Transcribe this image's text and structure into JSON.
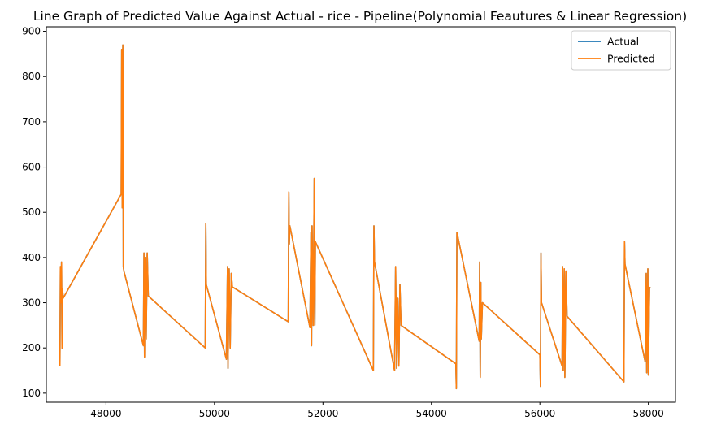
{
  "chart_data": {
    "type": "line",
    "title": "Line Graph of Predicted Value Against Actual - rice  - Pipeline(Polynomial Feautures & Linear Regression)",
    "xlabel": "",
    "ylabel": "",
    "xlim": [
      46900,
      58500
    ],
    "ylim": [
      80,
      910
    ],
    "xticks": [
      48000,
      50000,
      52000,
      54000,
      56000,
      58000
    ],
    "yticks": [
      100,
      200,
      300,
      400,
      500,
      600,
      700,
      800,
      900
    ],
    "grid": false,
    "legend_position": "top-right",
    "series": [
      {
        "name": "Actual",
        "color": "#1f77b4",
        "points": [
          [
            47150,
            160
          ],
          [
            47160,
            380
          ],
          [
            47170,
            300
          ],
          [
            47180,
            390
          ],
          [
            47190,
            200
          ],
          [
            47200,
            330
          ],
          [
            47210,
            310
          ],
          [
            48280,
            540
          ],
          [
            48290,
            860
          ],
          [
            48300,
            510
          ],
          [
            48310,
            870
          ],
          [
            48320,
            380
          ],
          [
            48330,
            370
          ],
          [
            48690,
            205
          ],
          [
            48700,
            410
          ],
          [
            48710,
            180
          ],
          [
            48720,
            400
          ],
          [
            48740,
            220
          ],
          [
            48760,
            410
          ],
          [
            48780,
            315
          ],
          [
            49830,
            200
          ],
          [
            49840,
            475
          ],
          [
            49850,
            340
          ],
          [
            50220,
            175
          ],
          [
            50240,
            380
          ],
          [
            50250,
            155
          ],
          [
            50270,
            375
          ],
          [
            50290,
            200
          ],
          [
            50310,
            365
          ],
          [
            50330,
            335
          ],
          [
            51360,
            258
          ],
          [
            51370,
            545
          ],
          [
            51380,
            430
          ],
          [
            51390,
            470
          ],
          [
            51760,
            245
          ],
          [
            51780,
            455
          ],
          [
            51790,
            205
          ],
          [
            51800,
            470
          ],
          [
            51820,
            250
          ],
          [
            51840,
            575
          ],
          [
            51850,
            250
          ],
          [
            51860,
            435
          ],
          [
            52930,
            150
          ],
          [
            52940,
            470
          ],
          [
            52950,
            390
          ],
          [
            53320,
            150
          ],
          [
            53340,
            380
          ],
          [
            53360,
            155
          ],
          [
            53380,
            310
          ],
          [
            53400,
            160
          ],
          [
            53420,
            340
          ],
          [
            53440,
            250
          ],
          [
            54450,
            165
          ],
          [
            54460,
            110
          ],
          [
            54470,
            455
          ],
          [
            54480,
            450
          ],
          [
            54880,
            215
          ],
          [
            54890,
            390
          ],
          [
            54900,
            135
          ],
          [
            54910,
            345
          ],
          [
            54920,
            220
          ],
          [
            54940,
            300
          ],
          [
            56000,
            185
          ],
          [
            56010,
            115
          ],
          [
            56020,
            410
          ],
          [
            56030,
            300
          ],
          [
            56410,
            160
          ],
          [
            56420,
            380
          ],
          [
            56430,
            150
          ],
          [
            56450,
            375
          ],
          [
            56460,
            135
          ],
          [
            56480,
            370
          ],
          [
            56500,
            270
          ],
          [
            57550,
            125
          ],
          [
            57560,
            435
          ],
          [
            57570,
            385
          ],
          [
            57940,
            170
          ],
          [
            57960,
            365
          ],
          [
            57970,
            145
          ],
          [
            57990,
            375
          ],
          [
            58000,
            140
          ],
          [
            58020,
            330
          ],
          [
            58030,
            335
          ]
        ]
      },
      {
        "name": "Predicted",
        "color": "#ff7f0e",
        "points": [
          [
            47150,
            160
          ],
          [
            47160,
            380
          ],
          [
            47170,
            300
          ],
          [
            47180,
            390
          ],
          [
            47190,
            200
          ],
          [
            47200,
            330
          ],
          [
            47210,
            310
          ],
          [
            48280,
            540
          ],
          [
            48290,
            860
          ],
          [
            48300,
            510
          ],
          [
            48310,
            870
          ],
          [
            48320,
            380
          ],
          [
            48330,
            370
          ],
          [
            48690,
            205
          ],
          [
            48700,
            410
          ],
          [
            48710,
            180
          ],
          [
            48720,
            400
          ],
          [
            48740,
            220
          ],
          [
            48760,
            410
          ],
          [
            48780,
            315
          ],
          [
            49830,
            200
          ],
          [
            49840,
            475
          ],
          [
            49850,
            340
          ],
          [
            50220,
            175
          ],
          [
            50240,
            380
          ],
          [
            50250,
            155
          ],
          [
            50270,
            375
          ],
          [
            50290,
            200
          ],
          [
            50310,
            365
          ],
          [
            50330,
            335
          ],
          [
            51360,
            258
          ],
          [
            51370,
            545
          ],
          [
            51380,
            430
          ],
          [
            51390,
            470
          ],
          [
            51760,
            245
          ],
          [
            51780,
            455
          ],
          [
            51790,
            205
          ],
          [
            51800,
            470
          ],
          [
            51820,
            250
          ],
          [
            51840,
            575
          ],
          [
            51850,
            250
          ],
          [
            51860,
            435
          ],
          [
            52930,
            150
          ],
          [
            52940,
            470
          ],
          [
            52950,
            390
          ],
          [
            53320,
            150
          ],
          [
            53340,
            380
          ],
          [
            53360,
            155
          ],
          [
            53380,
            310
          ],
          [
            53400,
            160
          ],
          [
            53420,
            340
          ],
          [
            53440,
            250
          ],
          [
            54450,
            165
          ],
          [
            54460,
            110
          ],
          [
            54470,
            455
          ],
          [
            54480,
            450
          ],
          [
            54880,
            215
          ],
          [
            54890,
            390
          ],
          [
            54900,
            135
          ],
          [
            54910,
            345
          ],
          [
            54920,
            220
          ],
          [
            54940,
            300
          ],
          [
            56000,
            185
          ],
          [
            56010,
            115
          ],
          [
            56020,
            410
          ],
          [
            56030,
            300
          ],
          [
            56410,
            160
          ],
          [
            56420,
            380
          ],
          [
            56430,
            150
          ],
          [
            56450,
            375
          ],
          [
            56460,
            135
          ],
          [
            56480,
            370
          ],
          [
            56500,
            270
          ],
          [
            57550,
            125
          ],
          [
            57560,
            435
          ],
          [
            57570,
            385
          ],
          [
            57940,
            170
          ],
          [
            57960,
            365
          ],
          [
            57970,
            145
          ],
          [
            57990,
            375
          ],
          [
            58000,
            140
          ],
          [
            58020,
            330
          ],
          [
            58030,
            335
          ]
        ]
      }
    ]
  }
}
